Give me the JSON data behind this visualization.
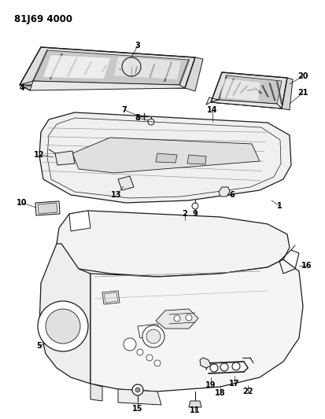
{
  "title": "81J69 4000",
  "bg": "#ffffff",
  "lc": "#1a1a1a",
  "tc": "#000000",
  "title_fontsize": 8.5,
  "label_fontsize": 7
}
